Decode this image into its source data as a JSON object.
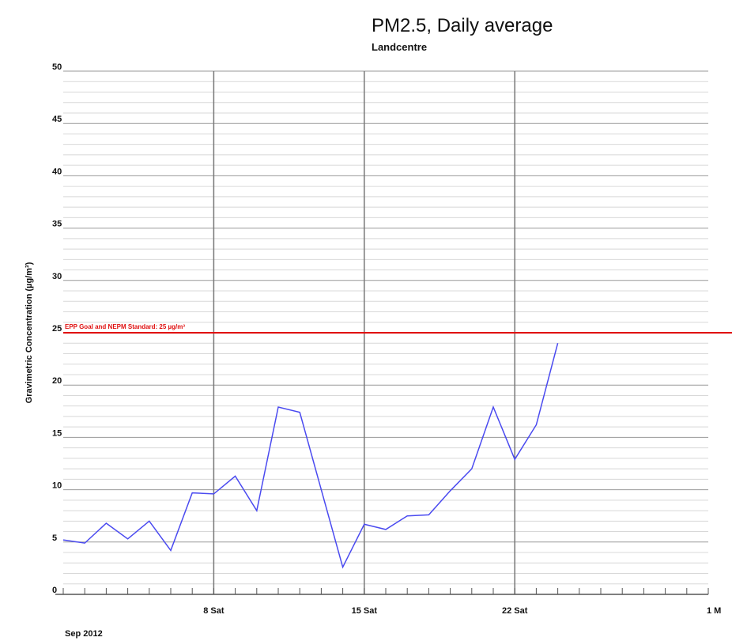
{
  "chart_data": {
    "type": "line",
    "title": "PM2.5, Daily average",
    "subtitle": "Landcentre",
    "y_label": "Gravimetric Concentration (µg/m³)",
    "x_label": "Sep 2012",
    "x": [
      1,
      2,
      3,
      4,
      5,
      6,
      7,
      8,
      9,
      10,
      11,
      12,
      13,
      14,
      15,
      16,
      17,
      18,
      19,
      20,
      21,
      22,
      23,
      24
    ],
    "series": [
      {
        "name": "PM2.5",
        "color": "#4a4af0",
        "values": [
          5.2,
          4.9,
          6.8,
          5.3,
          7.0,
          4.2,
          9.7,
          9.6,
          11.3,
          8.0,
          17.9,
          17.4,
          10.0,
          2.6,
          6.7,
          6.2,
          7.5,
          7.6,
          9.9,
          12.0,
          17.9,
          12.9,
          16.2,
          24.0
        ]
      }
    ],
    "xlim": [
      1,
      31
    ],
    "xticks": [
      {
        "value": 8,
        "label": "8 Sat"
      },
      {
        "value": 15,
        "label": "15 Sat"
      },
      {
        "value": 22,
        "label": "22 Sat"
      },
      {
        "value": 31,
        "label": "1 M"
      }
    ],
    "xminorticks": [
      1,
      2,
      3,
      4,
      5,
      6,
      7,
      8,
      9,
      10,
      11,
      12,
      13,
      14,
      15,
      16,
      17,
      18,
      19,
      20,
      21,
      22,
      23,
      24,
      25,
      26,
      27,
      28,
      29,
      30,
      31
    ],
    "ylim": [
      0,
      50
    ],
    "yticks": [
      0,
      5,
      10,
      15,
      20,
      25,
      30,
      35,
      40,
      45,
      50
    ],
    "yminorticks": [
      1,
      2,
      3,
      4,
      6,
      7,
      8,
      9,
      11,
      12,
      13,
      14,
      16,
      17,
      18,
      19,
      21,
      22,
      23,
      24,
      26,
      27,
      28,
      29,
      31,
      32,
      33,
      34,
      36,
      37,
      38,
      39,
      41,
      42,
      43,
      44,
      46,
      47,
      48,
      49
    ],
    "threshold": {
      "value": 25,
      "label": "EPP Goal and NEPM Standard: 25 µg/m³",
      "color": "#e01010"
    },
    "grid": true
  }
}
